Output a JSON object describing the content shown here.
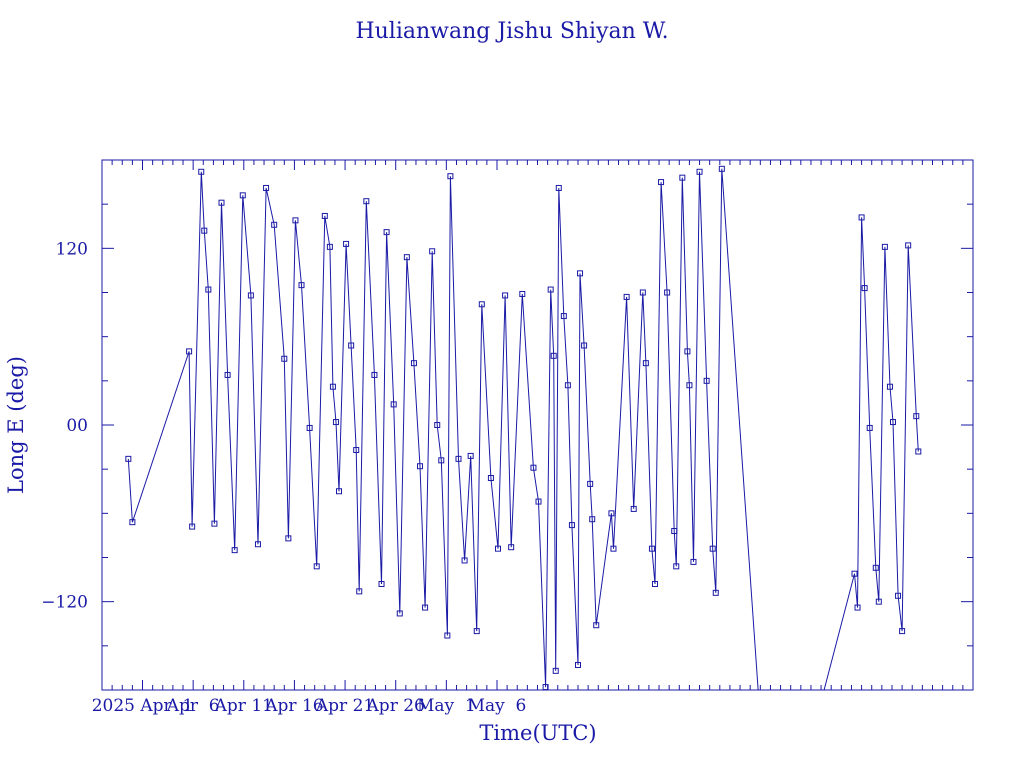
{
  "chart_data": {
    "type": "line",
    "title": "Hulianwang Jishu Shiyan W.",
    "xlabel": "Time(UTC)",
    "ylabel": "Long E (deg)",
    "x_unit": "days (0 = 2025 Apr 1 00:00 UTC)",
    "xlim": [
      -25,
      61
    ],
    "ylim": [
      -180,
      180
    ],
    "xticks": [
      {
        "v": -21,
        "label": "2025 Apr  1"
      },
      {
        "v": -16,
        "label": "Apr  6"
      },
      {
        "v": -11,
        "label": "Apr 11"
      },
      {
        "v": -6,
        "label": "Apr 16"
      },
      {
        "v": -1,
        "label": "Apr 21"
      },
      {
        "v": 4,
        "label": "Apr 26"
      },
      {
        "v": 9,
        "label": "May  1"
      },
      {
        "v": 14,
        "label": "May  6"
      }
    ],
    "yticks": [
      {
        "v": -120,
        "label": "−120"
      },
      {
        "v": 0,
        "label": "00"
      },
      {
        "v": 120,
        "label": "120"
      }
    ],
    "grid": false,
    "colors": {
      "line": "#1a1aa6",
      "axes": "#1a1aa6",
      "background": "#ffffff"
    },
    "series": [
      {
        "points": [
          [
            -22.4,
            -23
          ],
          [
            -22.0,
            -66
          ],
          [
            -16.4,
            50
          ],
          [
            -16.1,
            -69
          ],
          [
            -15.2,
            172
          ],
          [
            -14.9,
            132
          ],
          [
            -14.5,
            92
          ],
          [
            -13.9,
            -67
          ],
          [
            -13.2,
            151
          ],
          [
            -12.6,
            34
          ],
          [
            -11.9,
            -85
          ],
          [
            -11.1,
            156
          ],
          [
            -10.3,
            88
          ],
          [
            -9.6,
            -81
          ],
          [
            -8.8,
            161
          ],
          [
            -8.0,
            136
          ],
          [
            -7.0,
            45
          ],
          [
            -6.6,
            -77
          ],
          [
            -5.9,
            139
          ],
          [
            -5.3,
            95
          ],
          [
            -4.5,
            -2
          ],
          [
            -3.8,
            -96
          ],
          [
            -3.0,
            142
          ],
          [
            -2.5,
            121
          ],
          [
            -2.2,
            26
          ],
          [
            -1.9,
            2
          ],
          [
            -1.6,
            -45
          ],
          [
            -0.9,
            123
          ],
          [
            -0.4,
            54
          ],
          [
            0.1,
            -17
          ],
          [
            0.4,
            -113
          ],
          [
            1.1,
            152
          ],
          [
            1.9,
            34
          ],
          [
            2.6,
            -108
          ],
          [
            3.1,
            131
          ],
          [
            3.8,
            14
          ],
          [
            4.4,
            -128
          ],
          [
            5.1,
            114
          ],
          [
            5.8,
            42
          ],
          [
            6.4,
            -28
          ],
          [
            6.9,
            -124
          ],
          [
            7.6,
            118
          ],
          [
            8.1,
            0
          ],
          [
            8.5,
            -24
          ],
          [
            9.1,
            -143
          ],
          [
            9.4,
            169
          ],
          [
            10.2,
            -23
          ],
          [
            10.8,
            -92
          ],
          [
            11.4,
            -21
          ],
          [
            12.0,
            -140
          ],
          [
            12.5,
            82
          ],
          [
            13.4,
            -36
          ],
          [
            14.1,
            -84
          ],
          [
            14.8,
            88
          ],
          [
            15.4,
            -83
          ],
          [
            16.5,
            89
          ],
          [
            17.6,
            -29
          ],
          [
            18.1,
            -52
          ],
          [
            18.8,
            -178
          ],
          [
            19.3,
            92
          ],
          [
            19.6,
            47
          ],
          [
            19.8,
            -167
          ],
          [
            20.1,
            161
          ],
          [
            20.6,
            74
          ],
          [
            21.0,
            27
          ],
          [
            21.4,
            -68
          ],
          [
            22.0,
            -163
          ],
          [
            22.2,
            103
          ],
          [
            22.6,
            54
          ],
          [
            23.2,
            -40
          ],
          [
            23.4,
            -64
          ],
          [
            23.8,
            -136
          ],
          [
            25.3,
            -60
          ],
          [
            25.5,
            -84
          ],
          [
            26.8,
            87
          ],
          [
            27.5,
            -57
          ],
          [
            28.4,
            90
          ],
          [
            28.7,
            42
          ],
          [
            29.3,
            -84
          ],
          [
            29.6,
            -108
          ],
          [
            30.2,
            165
          ],
          [
            30.8,
            90
          ],
          [
            31.5,
            -72
          ],
          [
            31.7,
            -96
          ],
          [
            32.3,
            168
          ],
          [
            32.8,
            50
          ],
          [
            33.0,
            27
          ],
          [
            33.4,
            -93
          ],
          [
            34.0,
            172
          ],
          [
            34.7,
            30
          ],
          [
            35.3,
            -84
          ],
          [
            35.6,
            -114
          ],
          [
            36.2,
            174
          ],
          [
            40.0,
            -201
          ],
          [
            45.5,
            -201
          ],
          [
            49.3,
            -101
          ],
          [
            49.6,
            -124
          ],
          [
            50.0,
            141
          ],
          [
            50.3,
            93
          ],
          [
            50.8,
            -2
          ],
          [
            51.4,
            -97
          ],
          [
            51.7,
            -120
          ],
          [
            52.3,
            121
          ],
          [
            52.8,
            26
          ],
          [
            53.1,
            2
          ],
          [
            53.6,
            -116
          ],
          [
            54.0,
            -140
          ],
          [
            54.6,
            122
          ],
          [
            55.4,
            6
          ],
          [
            55.6,
            -18
          ]
        ]
      }
    ]
  }
}
